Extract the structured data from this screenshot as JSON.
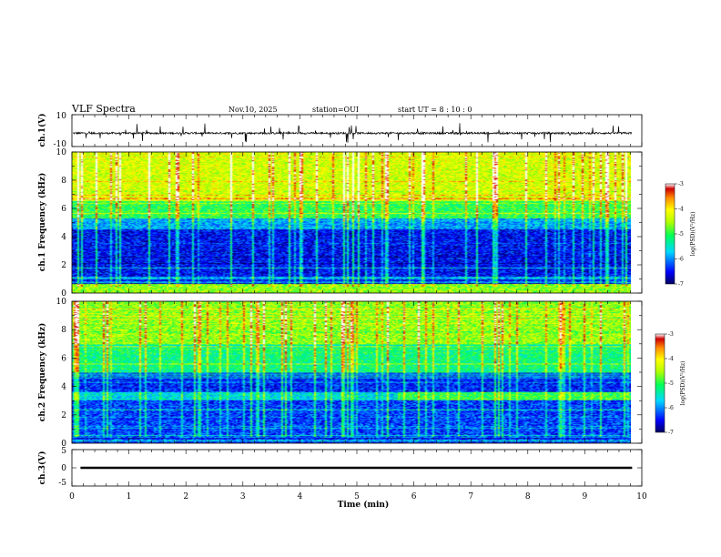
{
  "header": {
    "title": "VLF Spectra",
    "date": "Nov.10, 2025",
    "station": "station=OUI",
    "start": "start UT =  8 : 10 : 0"
  },
  "chart_data": [
    {
      "type": "line",
      "panel": "ch1-waveform",
      "ylabel": "ch.1(V)",
      "ylim": [
        -10,
        10
      ],
      "yticks": [
        "10",
        "-10"
      ],
      "xlim": [
        0,
        10
      ],
      "series_baseline": -1.6,
      "series_noise": "dense spiky noise around baseline",
      "x_range": [
        0,
        9.83
      ]
    },
    {
      "type": "heatmap",
      "panel": "ch1-spectrogram",
      "ylabel": "ch.1\nFrequency (kHz)",
      "ylim": [
        0,
        10
      ],
      "yticks": [
        "0",
        "2",
        "4",
        "6",
        "8",
        "10"
      ],
      "xlim": [
        0,
        10
      ],
      "colorbar": {
        "label": "log(PSD)(V²/Hz)",
        "range": [
          -7,
          -3
        ],
        "ticks": [
          "-3",
          "-4",
          "-5",
          "-6",
          "-7"
        ]
      },
      "bands_khz": [
        {
          "from": 0,
          "to": 0.6,
          "level": -4.6
        },
        {
          "from": 0.6,
          "to": 4.5,
          "level": -6.5
        },
        {
          "from": 4.5,
          "to": 5.3,
          "level": -5.9
        },
        {
          "from": 5.3,
          "to": 6.5,
          "level": -5.0
        },
        {
          "from": 6.5,
          "to": 10,
          "level": -4.3
        }
      ],
      "colors": [
        "#000080",
        "#0000ff",
        "#00d8ff",
        "#00ff5a",
        "#b4ff00",
        "#ffff00",
        "#ff8c00",
        "#d00000",
        "#ffffff"
      ]
    },
    {
      "type": "heatmap",
      "panel": "ch2-spectrogram",
      "ylabel": "ch.2\nFrequency (kHz)",
      "ylim": [
        0,
        10
      ],
      "yticks": [
        "0",
        "2",
        "4",
        "6",
        "8",
        "10"
      ],
      "xlim": [
        0,
        10
      ],
      "colorbar": {
        "label": "log(PSD)(V²/Hz)",
        "range": [
          -7,
          -3
        ],
        "ticks": [
          "-3",
          "-4",
          "-5",
          "-6",
          "-7"
        ]
      },
      "bands_khz": [
        {
          "from": 0,
          "to": 3.0,
          "level": -6.3
        },
        {
          "from": 3.0,
          "to": 3.6,
          "level": -5.6
        },
        {
          "from": 3.6,
          "to": 5.0,
          "level": -6.4
        },
        {
          "from": 5.0,
          "to": 7.0,
          "level": -5.2
        },
        {
          "from": 7.0,
          "to": 10,
          "level": -4.6
        }
      ]
    },
    {
      "type": "line",
      "panel": "ch3-trace",
      "ylabel": "ch.3(V)",
      "ylim": [
        -5,
        5
      ],
      "yticks": [
        "5",
        "0",
        "-5"
      ],
      "xlim": [
        0,
        10
      ],
      "xticks": [
        "0",
        "1",
        "2",
        "3",
        "4",
        "5",
        "6",
        "7",
        "8",
        "9",
        "10"
      ],
      "xlabel": "Time (min)",
      "x": [
        0.15,
        9.83
      ],
      "y": [
        0,
        0
      ]
    }
  ]
}
